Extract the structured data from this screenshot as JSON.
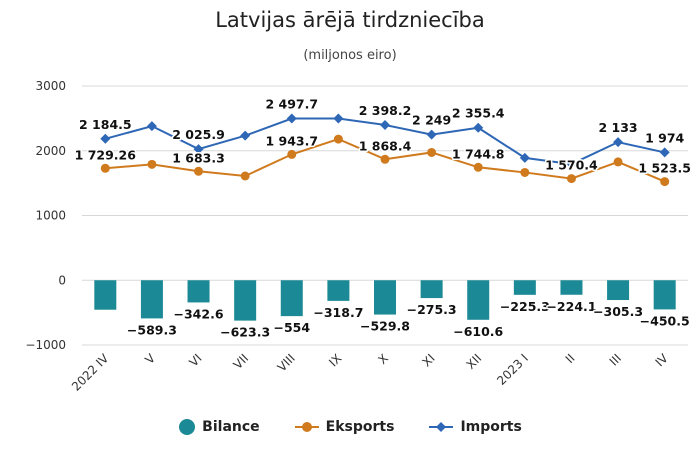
{
  "chart_data": {
    "type": "bar",
    "title": "Latvijas ārējā tirdzniecība",
    "subtitle": "(miljonos eiro)",
    "categories": [
      "2022 IV",
      "V",
      "VI",
      "VII",
      "VIII",
      "IX",
      "X",
      "XI",
      "XII",
      "2023 I",
      "II",
      "III",
      "IV"
    ],
    "ylim": [
      -1000,
      3000
    ],
    "yticks": [
      -1000,
      0,
      1000,
      2000,
      3000
    ],
    "ytick_labels": [
      "−1000",
      "0",
      "1000",
      "2000",
      "3000"
    ],
    "grid": true,
    "legend_position": "bottom",
    "series": [
      {
        "name": "Bilance",
        "type": "bar",
        "color": "#1b8a96",
        "values": [
          -455.2,
          -589.3,
          -342.6,
          -623.3,
          -554,
          -318.7,
          -529.8,
          -275.3,
          -610.6,
          -225.3,
          -224.1,
          -305.3,
          -450.5
        ],
        "labels": [
          "",
          "−589.3",
          "−342.6",
          "−623.3",
          "−554",
          "−318.7",
          "−529.8",
          "−275.3",
          "−610.6",
          "−225.3",
          "−224.1",
          "−305.3",
          "−450.5"
        ]
      },
      {
        "name": "Eksports",
        "type": "line",
        "color": "#d07a1e",
        "values": [
          1729.26,
          1790,
          1683.3,
          1610,
          1943.7,
          2180,
          1868.4,
          1973.7,
          1744.8,
          1665,
          1570.4,
          1827.7,
          1523.5
        ],
        "labels": [
          "1 729.26",
          "",
          "1 683.3",
          "",
          "1 943.7",
          "",
          "1 868.4",
          "",
          "1 744.8",
          "",
          "1 570.4",
          "",
          "1 523.5"
        ]
      },
      {
        "name": "Imports",
        "type": "line",
        "color": "#2e67b5",
        "values": [
          2184.5,
          2380,
          2025.9,
          2233,
          2497.7,
          2498.7,
          2398.2,
          2249,
          2355.4,
          1890,
          1794.5,
          2133,
          1974
        ],
        "labels": [
          "2 184.5",
          "",
          "2 025.9",
          "",
          "2 497.7",
          "",
          "2 398.2",
          "2 249",
          "2 355.4",
          "",
          "",
          "2 133",
          "1 974"
        ]
      }
    ]
  }
}
